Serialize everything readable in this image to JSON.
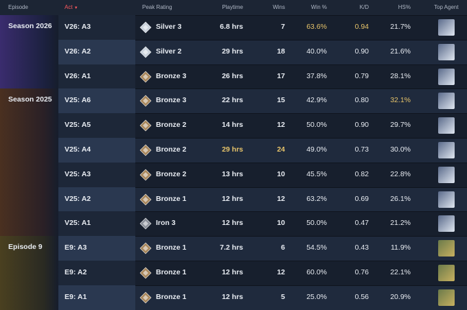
{
  "header": {
    "episode": "Episode",
    "act": "Act",
    "peak_rating": "Peak Rating",
    "playtime": "Playtime",
    "wins": "Wins",
    "win_pct": "Win %",
    "kd": "K/D",
    "hs_pct": "HS%",
    "top_agent": "Top Agent"
  },
  "episodes": [
    {
      "label": "Season 2026",
      "theme": "purple",
      "acts": [
        {
          "act": "V26: A3",
          "peak_rating": "Silver 3",
          "playtime": "6.8 hrs",
          "wins": "7",
          "win_pct": "63.6%",
          "kd": "0.94",
          "hs_pct": "21.7%",
          "highlight": [
            "win_pct",
            "kd"
          ]
        },
        {
          "act": "V26: A2",
          "peak_rating": "Silver 2",
          "playtime": "29 hrs",
          "wins": "18",
          "win_pct": "40.0%",
          "kd": "0.90",
          "hs_pct": "21.6%"
        },
        {
          "act": "V26: A1",
          "peak_rating": "Bronze 3",
          "playtime": "26 hrs",
          "wins": "17",
          "win_pct": "37.8%",
          "kd": "0.79",
          "hs_pct": "28.1%"
        }
      ]
    },
    {
      "label": "Season 2025",
      "theme": "brown",
      "acts": [
        {
          "act": "V25: A6",
          "peak_rating": "Bronze 3",
          "playtime": "22 hrs",
          "wins": "15",
          "win_pct": "42.9%",
          "kd": "0.80",
          "hs_pct": "32.1%",
          "highlight": [
            "hs_pct"
          ]
        },
        {
          "act": "V25: A5",
          "peak_rating": "Bronze 2",
          "playtime": "14 hrs",
          "wins": "12",
          "win_pct": "50.0%",
          "kd": "0.90",
          "hs_pct": "29.7%"
        },
        {
          "act": "V25: A4",
          "peak_rating": "Bronze 2",
          "playtime": "29 hrs",
          "wins": "24",
          "win_pct": "49.0%",
          "kd": "0.73",
          "hs_pct": "30.0%",
          "highlight": [
            "playtime",
            "wins"
          ]
        },
        {
          "act": "V25: A3",
          "peak_rating": "Bronze 2",
          "playtime": "13 hrs",
          "wins": "10",
          "win_pct": "45.5%",
          "kd": "0.82",
          "hs_pct": "22.8%"
        },
        {
          "act": "V25: A2",
          "peak_rating": "Bronze 1",
          "playtime": "12 hrs",
          "wins": "12",
          "win_pct": "63.2%",
          "kd": "0.69",
          "hs_pct": "26.1%"
        },
        {
          "act": "V25: A1",
          "peak_rating": "Iron 3",
          "playtime": "12 hrs",
          "wins": "10",
          "win_pct": "50.0%",
          "kd": "0.47",
          "hs_pct": "21.2%"
        }
      ]
    },
    {
      "label": "Episode 9",
      "theme": "olive",
      "acts": [
        {
          "act": "E9: A3",
          "peak_rating": "Bronze 1",
          "playtime": "7.2 hrs",
          "wins": "6",
          "win_pct": "54.5%",
          "kd": "0.43",
          "hs_pct": "11.9%"
        },
        {
          "act": "E9: A2",
          "peak_rating": "Bronze 1",
          "playtime": "12 hrs",
          "wins": "12",
          "win_pct": "60.0%",
          "kd": "0.76",
          "hs_pct": "22.1%"
        },
        {
          "act": "E9: A1",
          "peak_rating": "Bronze 1",
          "playtime": "12 hrs",
          "wins": "5",
          "win_pct": "25.0%",
          "kd": "0.56",
          "hs_pct": "20.9%"
        }
      ]
    }
  ]
}
